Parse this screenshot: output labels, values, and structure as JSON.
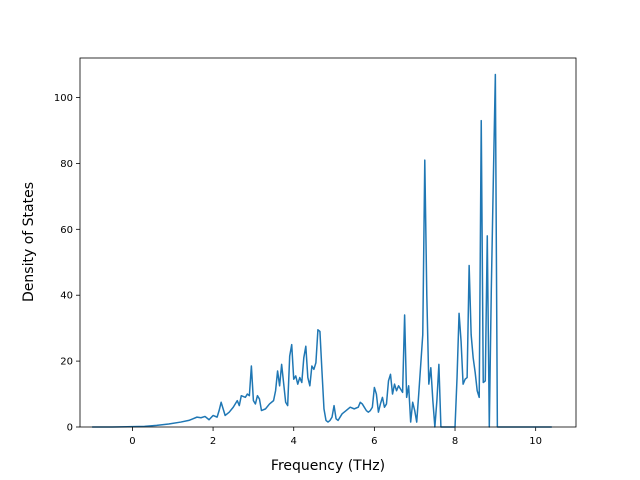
{
  "chart_data": {
    "type": "line",
    "title": "",
    "xlabel": "Frequency (THz)",
    "ylabel": "Density of States",
    "xlim": [
      -1.3,
      11.0
    ],
    "ylim": [
      0,
      112
    ],
    "xticks": [
      0,
      2,
      4,
      6,
      8,
      10
    ],
    "yticks": [
      0,
      20,
      40,
      60,
      80,
      100
    ],
    "grid": false,
    "legend": "none",
    "series": [
      {
        "color": "#1f77b4",
        "points": [
          [
            -1.0,
            0
          ],
          [
            -0.5,
            0
          ],
          [
            0.0,
            0.1
          ],
          [
            0.3,
            0.2
          ],
          [
            0.6,
            0.5
          ],
          [
            0.9,
            0.9
          ],
          [
            1.2,
            1.5
          ],
          [
            1.4,
            2.0
          ],
          [
            1.5,
            2.5
          ],
          [
            1.6,
            3.0
          ],
          [
            1.7,
            2.8
          ],
          [
            1.8,
            3.2
          ],
          [
            1.9,
            2.2
          ],
          [
            2.0,
            3.5
          ],
          [
            2.1,
            3.0
          ],
          [
            2.15,
            5.0
          ],
          [
            2.2,
            7.5
          ],
          [
            2.3,
            3.5
          ],
          [
            2.4,
            4.5
          ],
          [
            2.5,
            6.0
          ],
          [
            2.6,
            8.0
          ],
          [
            2.65,
            6.5
          ],
          [
            2.7,
            9.5
          ],
          [
            2.8,
            9.0
          ],
          [
            2.85,
            10.0
          ],
          [
            2.9,
            9.5
          ],
          [
            2.95,
            18.5
          ],
          [
            3.0,
            8.0
          ],
          [
            3.05,
            7.0
          ],
          [
            3.1,
            9.5
          ],
          [
            3.15,
            8.5
          ],
          [
            3.2,
            5.0
          ],
          [
            3.3,
            5.5
          ],
          [
            3.4,
            7.0
          ],
          [
            3.5,
            8.0
          ],
          [
            3.55,
            11.0
          ],
          [
            3.6,
            17.0
          ],
          [
            3.65,
            12.5
          ],
          [
            3.7,
            19.0
          ],
          [
            3.8,
            7.5
          ],
          [
            3.85,
            6.5
          ],
          [
            3.9,
            21.5
          ],
          [
            3.95,
            25.0
          ],
          [
            4.0,
            14.5
          ],
          [
            4.05,
            15.5
          ],
          [
            4.1,
            13.0
          ],
          [
            4.15,
            15.0
          ],
          [
            4.2,
            13.5
          ],
          [
            4.25,
            21.0
          ],
          [
            4.3,
            24.5
          ],
          [
            4.35,
            15.0
          ],
          [
            4.4,
            12.5
          ],
          [
            4.45,
            18.5
          ],
          [
            4.5,
            17.5
          ],
          [
            4.55,
            19.5
          ],
          [
            4.6,
            29.5
          ],
          [
            4.65,
            29.0
          ],
          [
            4.7,
            17.0
          ],
          [
            4.75,
            5.5
          ],
          [
            4.8,
            2.0
          ],
          [
            4.85,
            1.5
          ],
          [
            4.9,
            2.0
          ],
          [
            4.95,
            3.0
          ],
          [
            5.0,
            6.5
          ],
          [
            5.05,
            2.5
          ],
          [
            5.1,
            2.0
          ],
          [
            5.2,
            4.0
          ],
          [
            5.3,
            5.0
          ],
          [
            5.4,
            6.0
          ],
          [
            5.5,
            5.5
          ],
          [
            5.6,
            6.0
          ],
          [
            5.65,
            7.5
          ],
          [
            5.7,
            7.0
          ],
          [
            5.8,
            5.0
          ],
          [
            5.85,
            4.5
          ],
          [
            5.9,
            5.0
          ],
          [
            5.95,
            6.0
          ],
          [
            6.0,
            12.0
          ],
          [
            6.05,
            10.0
          ],
          [
            6.1,
            4.5
          ],
          [
            6.15,
            7.0
          ],
          [
            6.2,
            9.0
          ],
          [
            6.25,
            6.0
          ],
          [
            6.3,
            7.0
          ],
          [
            6.35,
            14.0
          ],
          [
            6.4,
            16.0
          ],
          [
            6.45,
            10.0
          ],
          [
            6.5,
            13.0
          ],
          [
            6.55,
            11.0
          ],
          [
            6.6,
            12.5
          ],
          [
            6.65,
            11.5
          ],
          [
            6.7,
            10.5
          ],
          [
            6.75,
            34.0
          ],
          [
            6.8,
            9.0
          ],
          [
            6.85,
            12.5
          ],
          [
            6.9,
            1.5
          ],
          [
            6.95,
            7.5
          ],
          [
            7.0,
            5.0
          ],
          [
            7.05,
            1.5
          ],
          [
            7.1,
            10.0
          ],
          [
            7.2,
            28.0
          ],
          [
            7.25,
            81.0
          ],
          [
            7.3,
            40.0
          ],
          [
            7.35,
            13.0
          ],
          [
            7.4,
            18.0
          ],
          [
            7.45,
            8.0
          ],
          [
            7.5,
            0
          ],
          [
            7.55,
            8.0
          ],
          [
            7.6,
            19.0
          ],
          [
            7.65,
            0
          ],
          [
            7.7,
            0
          ],
          [
            7.8,
            0
          ],
          [
            7.9,
            0
          ],
          [
            8.0,
            0
          ],
          [
            8.05,
            15.0
          ],
          [
            8.1,
            34.5
          ],
          [
            8.15,
            26.0
          ],
          [
            8.2,
            13.0
          ],
          [
            8.25,
            14.5
          ],
          [
            8.3,
            15.0
          ],
          [
            8.35,
            49.0
          ],
          [
            8.4,
            28.0
          ],
          [
            8.45,
            21.0
          ],
          [
            8.5,
            16.5
          ],
          [
            8.55,
            11.0
          ],
          [
            8.6,
            9.0
          ],
          [
            8.65,
            93.0
          ],
          [
            8.7,
            13.5
          ],
          [
            8.75,
            14.0
          ],
          [
            8.8,
            58.0
          ],
          [
            8.85,
            0
          ],
          [
            8.9,
            42.0
          ],
          [
            8.95,
            75.0
          ],
          [
            9.0,
            107.0
          ],
          [
            9.05,
            0
          ],
          [
            9.1,
            0
          ],
          [
            9.5,
            0
          ],
          [
            10.0,
            0
          ],
          [
            10.4,
            0
          ]
        ]
      }
    ]
  }
}
